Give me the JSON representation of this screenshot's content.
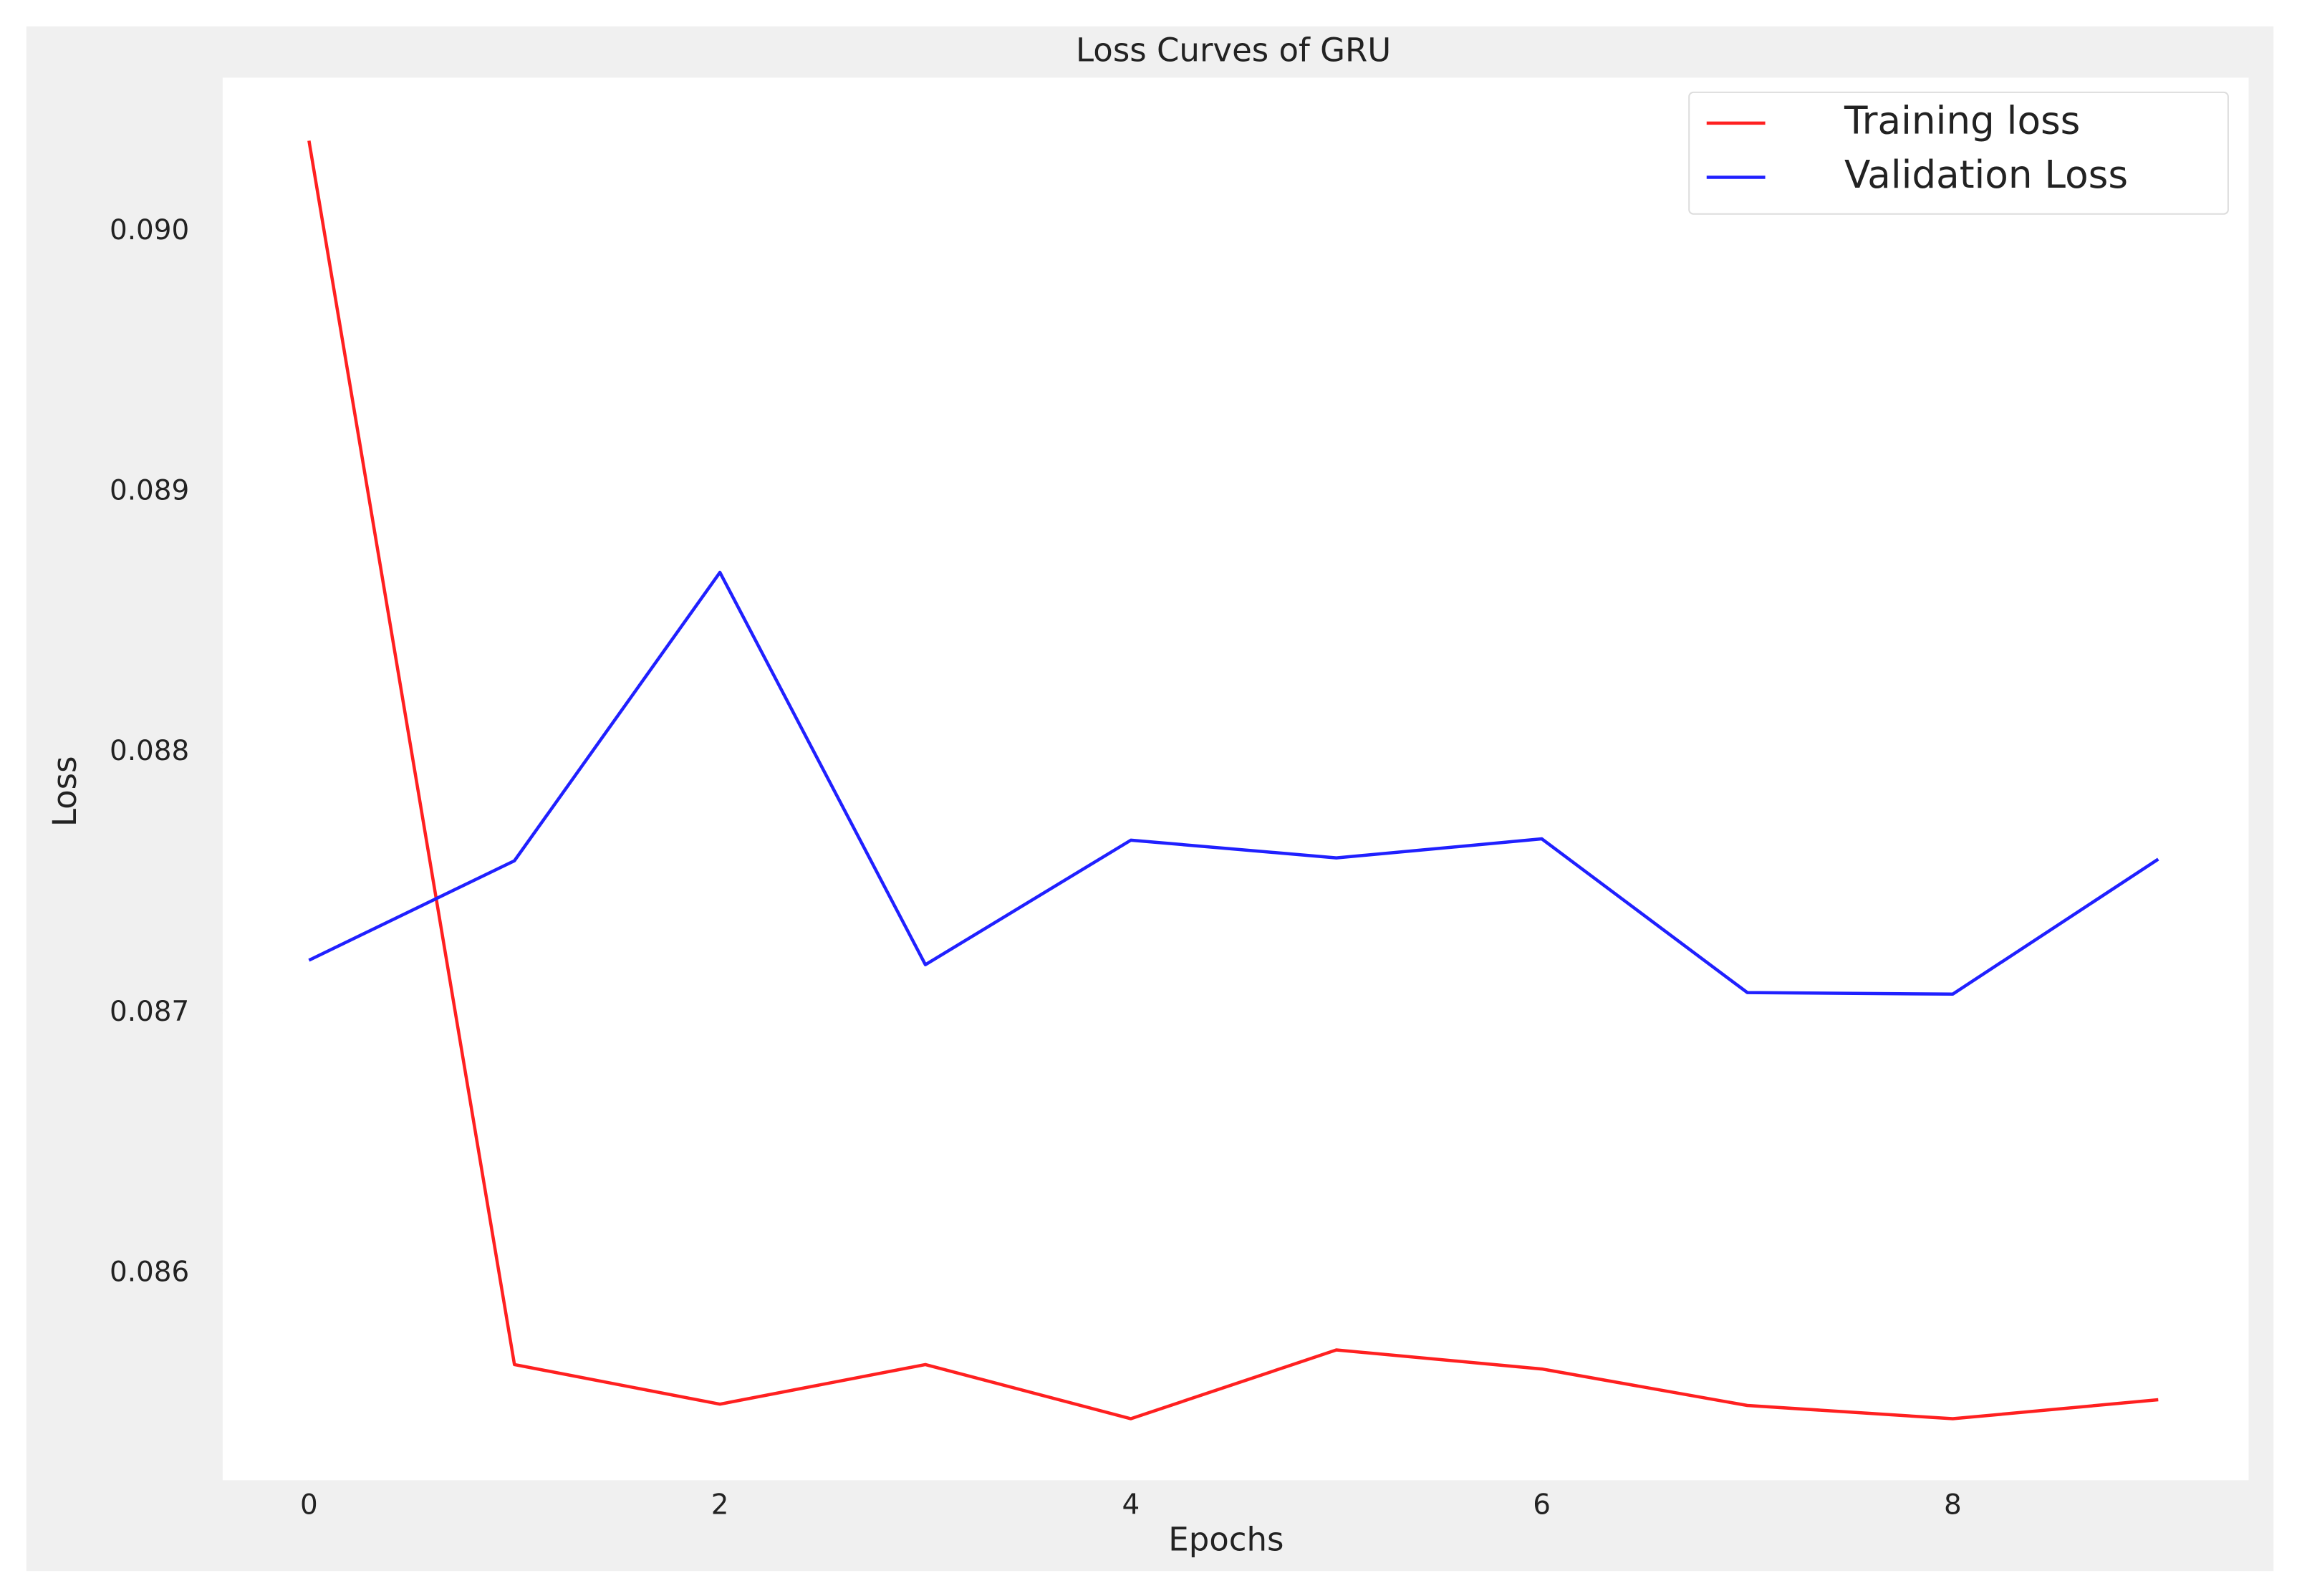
{
  "chart_data": {
    "type": "line",
    "title": "Loss Curves of GRU",
    "x_label": "Epochs",
    "y_label": "Loss",
    "x": [
      0,
      1,
      2,
      3,
      4,
      5,
      6,
      7,
      8,
      9
    ],
    "series": [
      {
        "name": "Training loss",
        "color": "#ff2020",
        "values": [
          0.090349,
          0.085651,
          0.085499,
          0.085651,
          0.085443,
          0.085707,
          0.085634,
          0.085494,
          0.085443,
          0.085516
        ]
      },
      {
        "name": "Validation Loss",
        "color": "#2020ff",
        "values": [
          0.087203,
          0.087585,
          0.088692,
          0.087186,
          0.087664,
          0.087596,
          0.087669,
          0.087079,
          0.087073,
          0.087591
        ]
      }
    ],
    "xlim": [
      -0.42,
      9.44
    ],
    "xticks": [
      0,
      2,
      4,
      6,
      8
    ],
    "ylim": [
      0.085207,
      0.090591
    ],
    "yticks": [
      0.086,
      0.087,
      0.088,
      0.089,
      {
        "value": 0.09,
        "label": "0.090"
      }
    ],
    "grid": false,
    "legend": "upper right"
  }
}
